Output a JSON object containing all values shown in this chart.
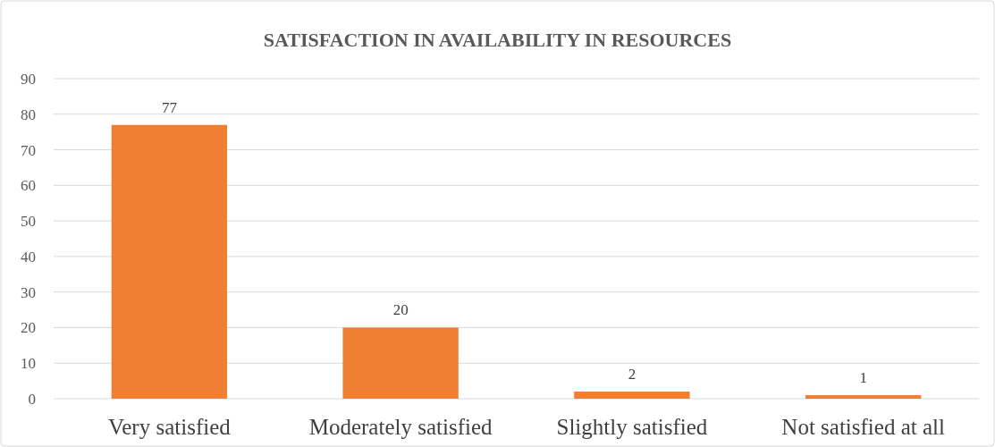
{
  "chart_data": {
    "type": "bar",
    "title": "SATISFACTION IN AVAILABILITY IN RESOURCES",
    "categories": [
      "Very satisfied",
      "Moderately satisfied",
      "Slightly satisfied",
      "Not satisfied at all"
    ],
    "values": [
      77,
      20,
      2,
      1
    ],
    "color": "#ef7f33",
    "ylim": [
      0,
      90
    ],
    "yticks": [
      0,
      10,
      20,
      30,
      40,
      50,
      60,
      70,
      80,
      90
    ],
    "grid": "y",
    "data_labels": true
  }
}
